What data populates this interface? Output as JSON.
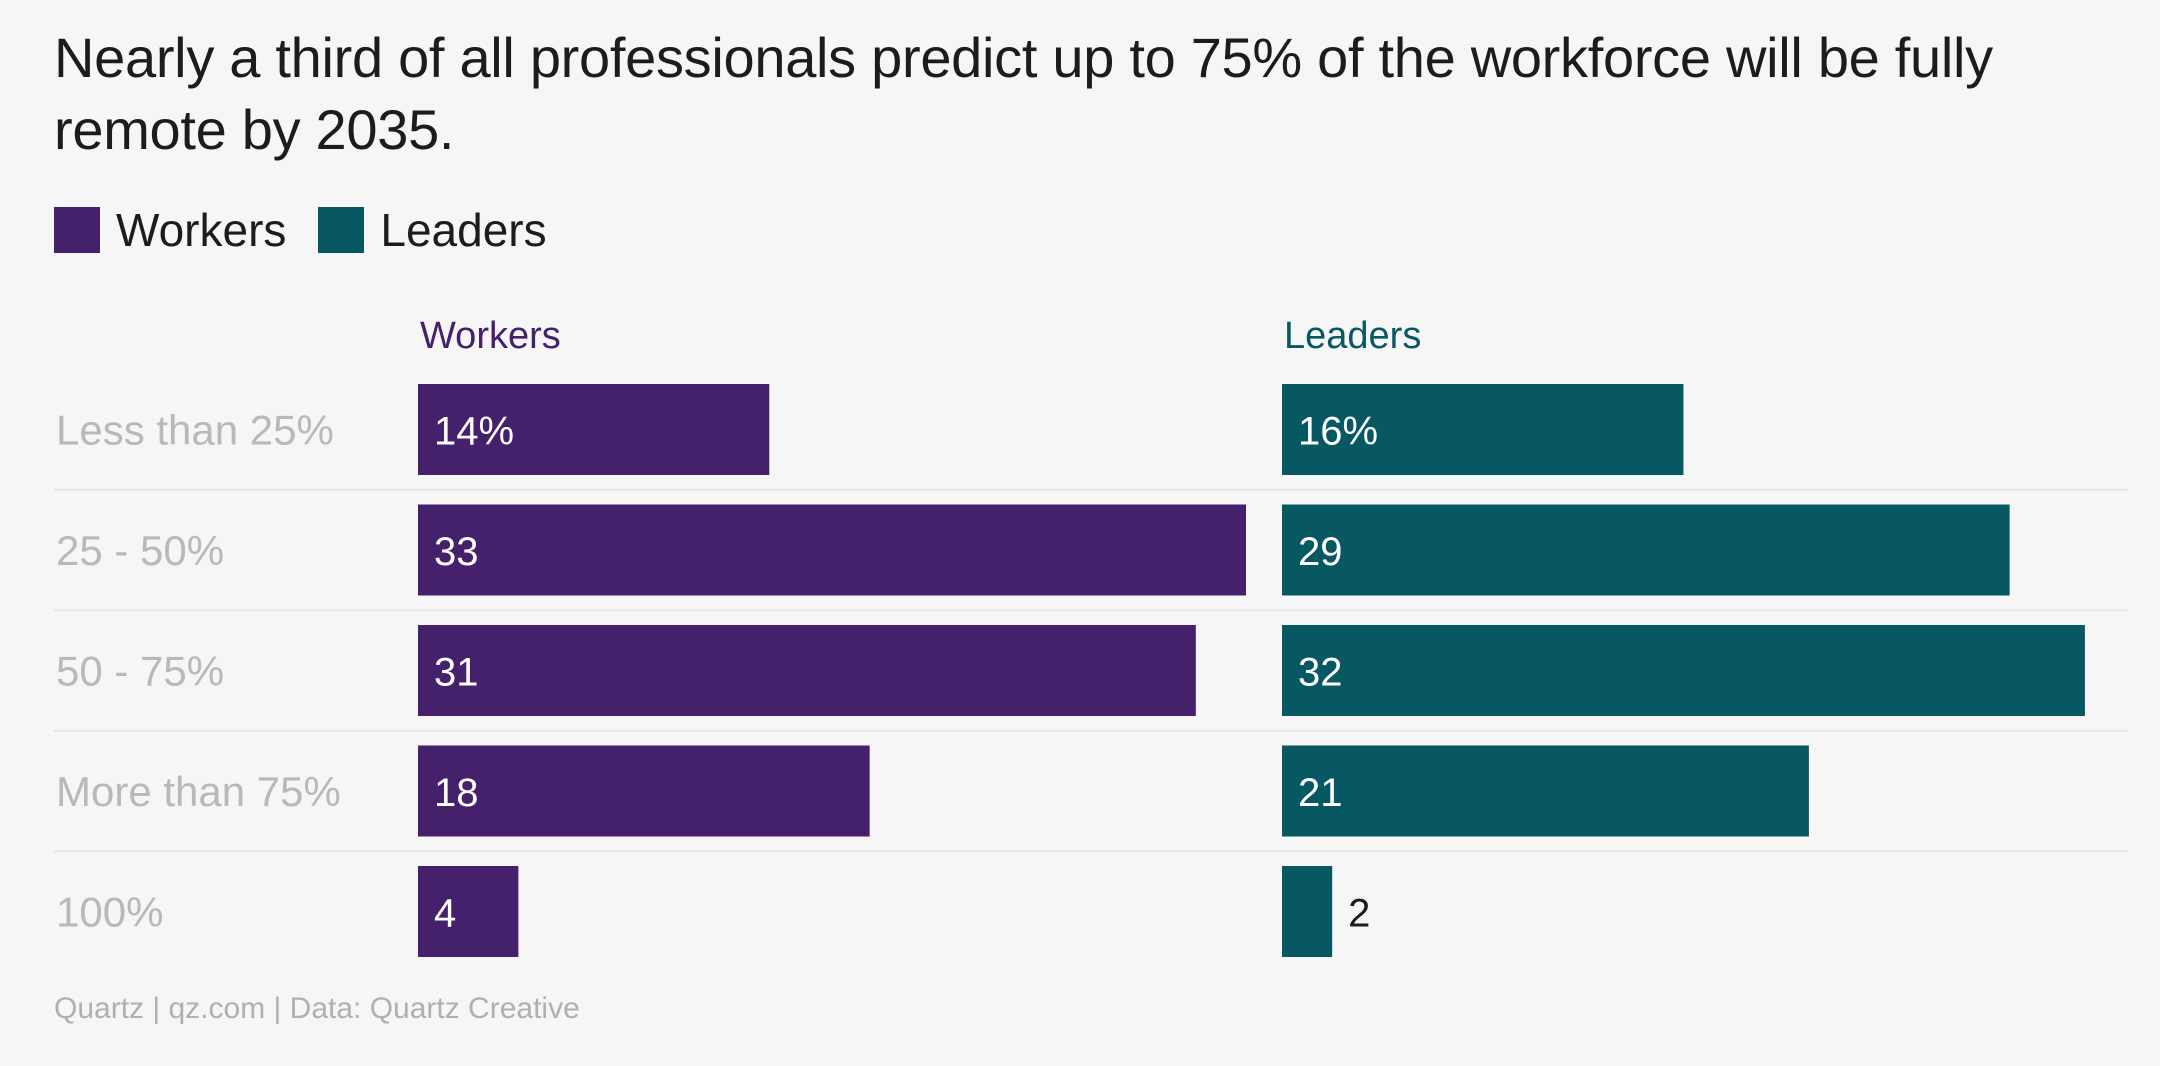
{
  "title": "Nearly a third of all professionals predict up to 75% of the workforce will be fully remote by 2035.",
  "legend": [
    {
      "label": "Workers",
      "color": "#45206b"
    },
    {
      "label": "Leaders",
      "color": "#075863"
    }
  ],
  "footer": "Quartz | qz.com | Data: Quartz Creative",
  "chart_data": {
    "type": "bar",
    "orientation": "horizontal",
    "layout": "small-multiples",
    "categories": [
      "Less than 25%",
      "25 - 50%",
      "50 - 75%",
      "More than 75%",
      "100%"
    ],
    "series": [
      {
        "name": "Workers",
        "color": "#45206b",
        "values": [
          14,
          33,
          31,
          18,
          4
        ],
        "labels": [
          "14%",
          "33",
          "31",
          "18",
          "4"
        ]
      },
      {
        "name": "Leaders",
        "color": "#075863",
        "values": [
          16,
          29,
          32,
          21,
          2
        ],
        "labels": [
          "16%",
          "29",
          "32",
          "21",
          "2"
        ]
      }
    ],
    "xlim": [
      0,
      33
    ],
    "title": "Nearly a third of all professionals predict up to 75% of the workforce will be fully remote by 2035.",
    "xlabel": "",
    "ylabel": "",
    "grid": false
  }
}
